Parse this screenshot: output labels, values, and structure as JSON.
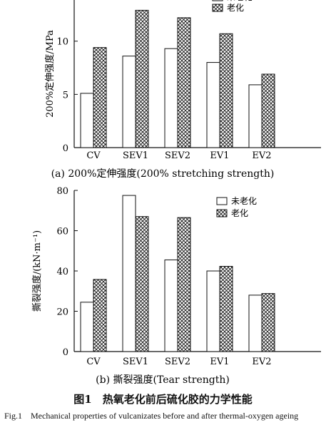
{
  "chart_data": [
    {
      "type": "bar",
      "categories": [
        "CV",
        "SEV1",
        "SEV2",
        "EV1",
        "EV2"
      ],
      "series": [
        {
          "name": "未老化",
          "values": [
            5.1,
            8.6,
            9.3,
            8.0,
            5.9
          ]
        },
        {
          "name": "老化",
          "values": [
            9.4,
            12.9,
            12.2,
            10.7,
            6.9
          ]
        }
      ],
      "ylabel": "200%定伸强度/MPa",
      "ylim": [
        0,
        14
      ],
      "yticks": [
        0,
        5,
        10
      ],
      "caption": "(a) 200%定伸强度(200% stretching strength)",
      "legend_position": "top-right",
      "grid": false
    },
    {
      "type": "bar",
      "categories": [
        "CV",
        "SEV1",
        "SEV2",
        "EV1",
        "EV2"
      ],
      "series": [
        {
          "name": "未老化",
          "values": [
            24.5,
            77.5,
            45.5,
            40.0,
            28.0
          ]
        },
        {
          "name": "老化",
          "values": [
            35.8,
            67.0,
            66.5,
            42.3,
            28.8
          ]
        }
      ],
      "ylabel": "撕裂强度/(kN·m⁻¹)",
      "ylim": [
        0,
        80
      ],
      "yticks": [
        0,
        20,
        40,
        60,
        80
      ],
      "caption": "(b) 撕裂强度(Tear strength)",
      "legend_position": "top-right",
      "grid": false
    }
  ],
  "figure": {
    "title_zh": "图1　热氧老化前后硫化胶的力学性能",
    "title_en": "Fig.1　Mechanical properties of vulcanizates before and after thermal-oxygen ageing"
  }
}
